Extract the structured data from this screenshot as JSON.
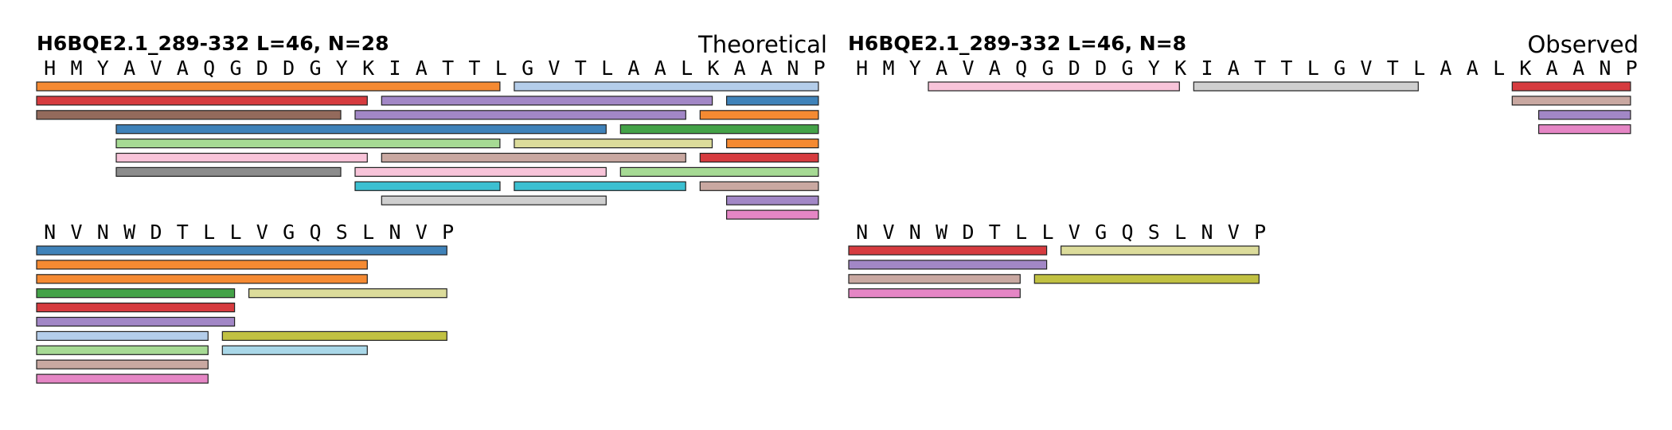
{
  "chart_data": [
    {
      "type": "peptide-coverage",
      "title": "H6BQE2.1_289-332  L=46, N=28",
      "label": "Theoretical",
      "rows": [
        {
          "residues": "HMYAVAQGDDGYKIATTLGVTLAALKAANP",
          "peptides": [
            {
              "start": 1,
              "end": 18,
              "lane": 0,
              "color": "#f58a32"
            },
            {
              "start": 19,
              "end": 30,
              "lane": 0,
              "color": "#b4cdea"
            },
            {
              "start": 1,
              "end": 13,
              "lane": 1,
              "color": "#d63b3f"
            },
            {
              "start": 14,
              "end": 26,
              "lane": 1,
              "color": "#a287c6"
            },
            {
              "start": 27,
              "end": 30,
              "lane": 1,
              "color": "#3f82b9"
            },
            {
              "start": 1,
              "end": 12,
              "lane": 2,
              "color": "#936a5c"
            },
            {
              "start": 13,
              "end": 25,
              "lane": 2,
              "color": "#a287c6"
            },
            {
              "start": 26,
              "end": 30,
              "lane": 2,
              "color": "#f58a32"
            },
            {
              "start": 4,
              "end": 22,
              "lane": 3,
              "color": "#3f82b9"
            },
            {
              "start": 23,
              "end": 30,
              "lane": 3,
              "color": "#44a248"
            },
            {
              "start": 4,
              "end": 18,
              "lane": 4,
              "color": "#a6da94"
            },
            {
              "start": 19,
              "end": 26,
              "lane": 4,
              "color": "#dcdc9b"
            },
            {
              "start": 27,
              "end": 30,
              "lane": 4,
              "color": "#f58a32"
            },
            {
              "start": 4,
              "end": 13,
              "lane": 5,
              "color": "#f8c4d9"
            },
            {
              "start": 14,
              "end": 25,
              "lane": 5,
              "color": "#c9a8a1"
            },
            {
              "start": 26,
              "end": 30,
              "lane": 5,
              "color": "#d63b3f"
            },
            {
              "start": 4,
              "end": 12,
              "lane": 6,
              "color": "#8c8c8c"
            },
            {
              "start": 13,
              "end": 22,
              "lane": 6,
              "color": "#f8c4d9"
            },
            {
              "start": 23,
              "end": 30,
              "lane": 6,
              "color": "#a6da94"
            },
            {
              "start": 13,
              "end": 18,
              "lane": 7,
              "color": "#3cc0d1"
            },
            {
              "start": 19,
              "end": 25,
              "lane": 7,
              "color": "#3cc0d1"
            },
            {
              "start": 26,
              "end": 30,
              "lane": 7,
              "color": "#c9a8a1"
            },
            {
              "start": 14,
              "end": 22,
              "lane": 8,
              "color": "#cfcfcf"
            },
            {
              "start": 27,
              "end": 30,
              "lane": 8,
              "color": "#a287c6"
            },
            {
              "start": 27,
              "end": 30,
              "lane": 9,
              "color": "#e586c5"
            }
          ]
        },
        {
          "residues": "NVNWDTLLVGQSLNVP",
          "peptides": [
            {
              "start": 1,
              "end": 16,
              "lane": 0,
              "color": "#3f82b9"
            },
            {
              "start": 1,
              "end": 13,
              "lane": 1,
              "color": "#f58a32"
            },
            {
              "start": 1,
              "end": 13,
              "lane": 2,
              "color": "#f58a32"
            },
            {
              "start": 1,
              "end": 8,
              "lane": 3,
              "color": "#44a248"
            },
            {
              "start": 9,
              "end": 16,
              "lane": 3,
              "color": "#dcdc9b"
            },
            {
              "start": 1,
              "end": 8,
              "lane": 4,
              "color": "#d63b3f"
            },
            {
              "start": 1,
              "end": 8,
              "lane": 5,
              "color": "#a287c6"
            },
            {
              "start": 1,
              "end": 7,
              "lane": 6,
              "color": "#b4cdea"
            },
            {
              "start": 8,
              "end": 16,
              "lane": 6,
              "color": "#c1c142"
            },
            {
              "start": 1,
              "end": 7,
              "lane": 7,
              "color": "#a6da94"
            },
            {
              "start": 8,
              "end": 13,
              "lane": 7,
              "color": "#a9d7e8"
            },
            {
              "start": 1,
              "end": 7,
              "lane": 8,
              "color": "#c9a8a1"
            },
            {
              "start": 1,
              "end": 7,
              "lane": 9,
              "color": "#e586c5"
            }
          ]
        }
      ]
    },
    {
      "type": "peptide-coverage",
      "title": "H6BQE2.1_289-332  L=46, N=8",
      "label": "Observed",
      "rows": [
        {
          "residues": "HMYAVAQGDDGYKIATTLGVTLAALKAANP",
          "peptides": [
            {
              "start": 4,
              "end": 13,
              "lane": 0,
              "color": "#f8c4d9"
            },
            {
              "start": 14,
              "end": 22,
              "lane": 0,
              "color": "#cfcfcf"
            },
            {
              "start": 26,
              "end": 30,
              "lane": 0,
              "color": "#d63b3f"
            },
            {
              "start": 26,
              "end": 30,
              "lane": 1,
              "color": "#c9a8a1"
            },
            {
              "start": 27,
              "end": 30,
              "lane": 2,
              "color": "#a287c6"
            },
            {
              "start": 27,
              "end": 30,
              "lane": 3,
              "color": "#e586c5"
            }
          ]
        },
        {
          "residues": "NVNWDTLLVGQSLNVP",
          "peptides": [
            {
              "start": 1,
              "end": 8,
              "lane": 0,
              "color": "#d63b3f"
            },
            {
              "start": 9,
              "end": 16,
              "lane": 0,
              "color": "#dcdc9b"
            },
            {
              "start": 1,
              "end": 8,
              "lane": 1,
              "color": "#a287c6"
            },
            {
              "start": 1,
              "end": 7,
              "lane": 2,
              "color": "#c9a8a1"
            },
            {
              "start": 8,
              "end": 16,
              "lane": 2,
              "color": "#c1c142"
            },
            {
              "start": 1,
              "end": 7,
              "lane": 3,
              "color": "#e586c5"
            }
          ]
        }
      ]
    }
  ]
}
